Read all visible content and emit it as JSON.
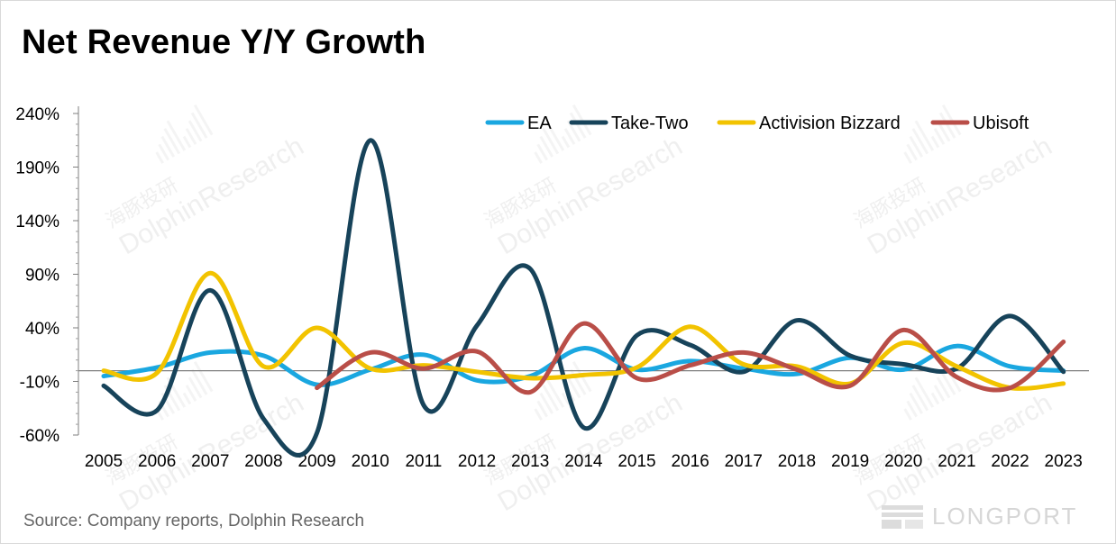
{
  "title": "Net Revenue Y/Y Growth",
  "source": "Source: Company reports, Dolphin Research",
  "watermark": {
    "cn": "海豚投研",
    "en": "DolphinResearch",
    "brand": "LONGPORT"
  },
  "chart_data": {
    "type": "line",
    "title": "Net Revenue Y/Y Growth",
    "xlabel": "",
    "ylabel": "",
    "ylim": [
      -60,
      240
    ],
    "yticks": [
      -60,
      -10,
      40,
      90,
      140,
      190,
      240
    ],
    "ytick_labels": [
      "-60%",
      "-10%",
      "40%",
      "90%",
      "140%",
      "190%",
      "240%"
    ],
    "grid": false,
    "legend_position": "top-right",
    "categories": [
      "2005",
      "2006",
      "2007",
      "2008",
      "2009",
      "2010",
      "2011",
      "2012",
      "2013",
      "2014",
      "2015",
      "2016",
      "2017",
      "2018",
      "2019",
      "2020",
      "2021",
      "2022",
      "2023"
    ],
    "series": [
      {
        "name": "EA",
        "color": "#1aa7e0",
        "values": [
          -5,
          3,
          17,
          14,
          -13,
          1,
          15,
          -9,
          -5,
          21,
          1,
          9,
          2,
          -3,
          12,
          1,
          23,
          4,
          0
        ]
      },
      {
        "name": "Take-Two",
        "color": "#17435a",
        "values": [
          -14,
          -37,
          75,
          -45,
          -58,
          215,
          -32,
          42,
          95,
          -53,
          33,
          24,
          -1,
          47,
          14,
          6,
          2,
          51,
          -1
        ]
      },
      {
        "name": "Activision Bizzard",
        "color": "#f2c300",
        "values": [
          0,
          -2,
          91,
          4,
          40,
          2,
          5,
          -1,
          -7,
          -4,
          3,
          41,
          6,
          4,
          -12,
          26,
          4,
          -16,
          -12
        ]
      },
      {
        "name": "Ubisoft",
        "color": "#b94e48",
        "values": [
          null,
          null,
          null,
          null,
          -16,
          17,
          2,
          18,
          -20,
          44,
          -7,
          5,
          17,
          1,
          -14,
          38,
          -6,
          -16,
          27
        ]
      }
    ]
  }
}
